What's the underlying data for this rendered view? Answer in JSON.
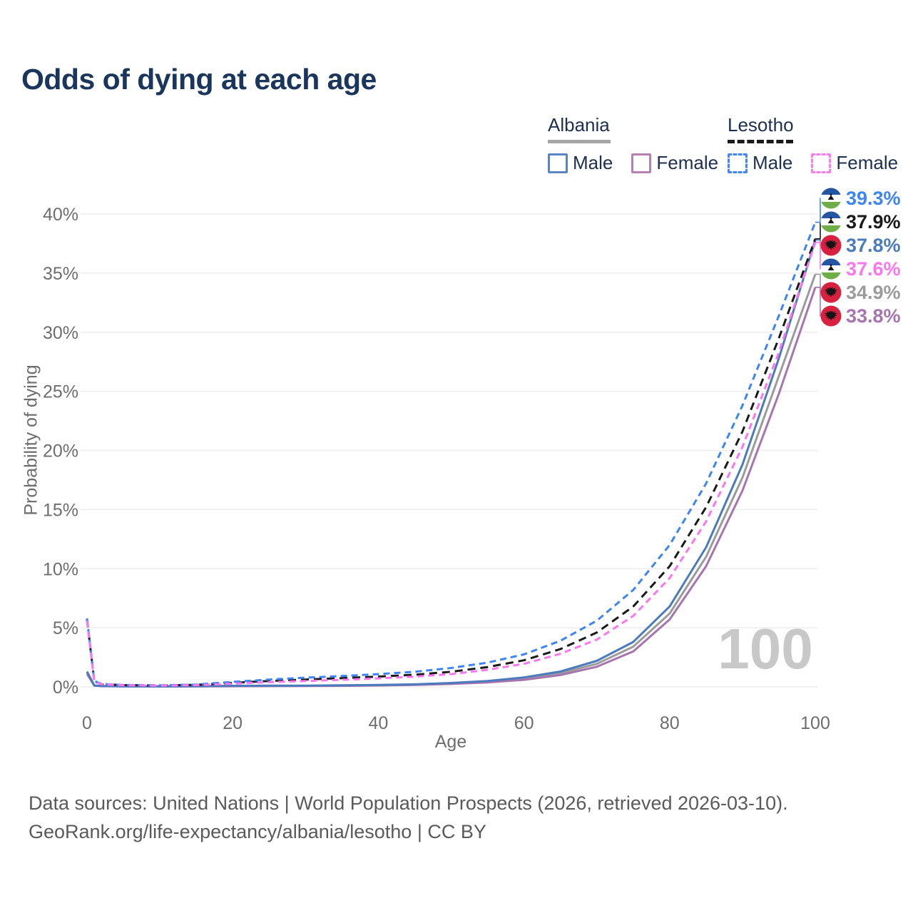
{
  "page": {
    "title": "Odds of dying at each age"
  },
  "legend": {
    "groups": [
      {
        "id": "albania",
        "label": "Albania",
        "line_style": "solid",
        "line_color": "#a6a6a6",
        "items": [
          {
            "id": "albania-male",
            "label": "Male",
            "color": "#5b84c4",
            "dashed": false
          },
          {
            "id": "albania-female",
            "label": "Female",
            "color": "#b77fb4",
            "dashed": false
          }
        ]
      },
      {
        "id": "lesotho",
        "label": "Lesotho",
        "line_style": "dashed",
        "line_color": "#1a1a1a",
        "items": [
          {
            "id": "lesotho-male",
            "label": "Male",
            "color": "#4285f4",
            "dashed": true
          },
          {
            "id": "lesotho-female",
            "label": "Female",
            "color": "#fb7ced",
            "dashed": true
          }
        ]
      }
    ]
  },
  "chart_data": {
    "type": "line",
    "title": "Odds of dying at each age",
    "xlabel": "Age",
    "ylabel": "Probability of dying",
    "xlim": [
      0,
      100
    ],
    "ylim": [
      0,
      41
    ],
    "xticks": [
      0,
      20,
      40,
      60,
      80,
      100
    ],
    "yticks_percent": [
      0,
      5,
      10,
      15,
      20,
      25,
      30,
      35,
      40
    ],
    "grid": "horizontal",
    "legend_position": "top-right",
    "watermark_age": "100",
    "series": [
      {
        "id": "albania-all",
        "name": "Albania (both sexes)",
        "flag": "albania",
        "color": "#9b9b9b",
        "dash": null,
        "end_value": "34.9%",
        "end_text_color": "#9b9b9b",
        "label_row": 4,
        "points": [
          [
            0,
            1.2
          ],
          [
            1,
            0.11
          ],
          [
            2,
            0.07
          ],
          [
            5,
            0.045
          ],
          [
            10,
            0.04
          ],
          [
            15,
            0.05
          ],
          [
            20,
            0.07
          ],
          [
            25,
            0.08
          ],
          [
            30,
            0.09
          ],
          [
            35,
            0.11
          ],
          [
            40,
            0.14
          ],
          [
            45,
            0.2
          ],
          [
            50,
            0.29
          ],
          [
            55,
            0.44
          ],
          [
            60,
            0.7
          ],
          [
            65,
            1.15
          ],
          [
            70,
            1.95
          ],
          [
            75,
            3.4
          ],
          [
            80,
            6.2
          ],
          [
            85,
            11.0
          ],
          [
            90,
            17.7
          ],
          [
            95,
            26.3
          ],
          [
            100,
            34.9
          ]
        ]
      },
      {
        "id": "albania-female",
        "name": "Albania Female",
        "flag": "albania",
        "color": "#a874b0",
        "dash": null,
        "end_value": "33.8%",
        "end_text_color": "#a874b0",
        "label_row": 5,
        "points": [
          [
            0,
            1.1
          ],
          [
            1,
            0.1
          ],
          [
            2,
            0.06
          ],
          [
            5,
            0.04
          ],
          [
            10,
            0.035
          ],
          [
            15,
            0.045
          ],
          [
            20,
            0.055
          ],
          [
            25,
            0.065
          ],
          [
            30,
            0.075
          ],
          [
            35,
            0.09
          ],
          [
            40,
            0.12
          ],
          [
            45,
            0.17
          ],
          [
            50,
            0.25
          ],
          [
            55,
            0.38
          ],
          [
            60,
            0.6
          ],
          [
            65,
            1.0
          ],
          [
            70,
            1.7
          ],
          [
            75,
            3.0
          ],
          [
            80,
            5.7
          ],
          [
            85,
            10.2
          ],
          [
            90,
            16.6
          ],
          [
            95,
            24.8
          ],
          [
            100,
            33.8
          ]
        ]
      },
      {
        "id": "albania-male",
        "name": "Albania Male",
        "flag": "albania",
        "color": "#4a7cbd",
        "dash": null,
        "end_value": "37.8%",
        "end_text_color": "#4a7cbd",
        "label_row": 2,
        "points": [
          [
            0,
            1.3
          ],
          [
            1,
            0.12
          ],
          [
            2,
            0.08
          ],
          [
            5,
            0.05
          ],
          [
            10,
            0.045
          ],
          [
            15,
            0.06
          ],
          [
            20,
            0.09
          ],
          [
            25,
            0.1
          ],
          [
            30,
            0.11
          ],
          [
            35,
            0.13
          ],
          [
            40,
            0.16
          ],
          [
            45,
            0.22
          ],
          [
            50,
            0.33
          ],
          [
            55,
            0.5
          ],
          [
            60,
            0.8
          ],
          [
            65,
            1.3
          ],
          [
            70,
            2.2
          ],
          [
            75,
            3.8
          ],
          [
            80,
            6.8
          ],
          [
            85,
            11.8
          ],
          [
            90,
            18.8
          ],
          [
            95,
            27.8
          ],
          [
            100,
            37.8
          ]
        ]
      },
      {
        "id": "lesotho-all",
        "name": "Lesotho (both sexes)",
        "flag": "lesotho",
        "color": "#1a1a1a",
        "dash": "11 7",
        "end_value": "37.9%",
        "end_text_color": "#1a1a1a",
        "label_row": 1,
        "points": [
          [
            0,
            5.7
          ],
          [
            1,
            0.48
          ],
          [
            2,
            0.23
          ],
          [
            5,
            0.15
          ],
          [
            10,
            0.12
          ],
          [
            15,
            0.17
          ],
          [
            20,
            0.34
          ],
          [
            25,
            0.5
          ],
          [
            30,
            0.62
          ],
          [
            35,
            0.74
          ],
          [
            40,
            0.87
          ],
          [
            45,
            1.03
          ],
          [
            50,
            1.28
          ],
          [
            55,
            1.68
          ],
          [
            60,
            2.25
          ],
          [
            65,
            3.2
          ],
          [
            70,
            4.6
          ],
          [
            75,
            6.8
          ],
          [
            80,
            10.2
          ],
          [
            85,
            15.2
          ],
          [
            90,
            21.6
          ],
          [
            95,
            29.5
          ],
          [
            100,
            37.9
          ]
        ]
      },
      {
        "id": "lesotho-male",
        "name": "Lesotho Male",
        "flag": "lesotho",
        "color": "#3d85f0",
        "dash": "9 6",
        "end_value": "39.3%",
        "end_text_color": "#3d85f0",
        "label_row": 0,
        "points": [
          [
            0,
            5.8
          ],
          [
            1,
            0.5
          ],
          [
            2,
            0.25
          ],
          [
            5,
            0.16
          ],
          [
            10,
            0.13
          ],
          [
            15,
            0.2
          ],
          [
            20,
            0.42
          ],
          [
            25,
            0.62
          ],
          [
            30,
            0.78
          ],
          [
            35,
            0.92
          ],
          [
            40,
            1.08
          ],
          [
            45,
            1.28
          ],
          [
            50,
            1.6
          ],
          [
            55,
            2.05
          ],
          [
            60,
            2.75
          ],
          [
            65,
            3.9
          ],
          [
            70,
            5.6
          ],
          [
            75,
            8.2
          ],
          [
            80,
            12.0
          ],
          [
            85,
            17.2
          ],
          [
            90,
            23.8
          ],
          [
            95,
            31.4
          ],
          [
            100,
            39.3
          ]
        ]
      },
      {
        "id": "lesotho-female",
        "name": "Lesotho Female",
        "flag": "lesotho",
        "color": "#fb76ee",
        "dash": "9 6",
        "end_value": "37.6%",
        "end_text_color": "#fb76ee",
        "label_row": 3,
        "points": [
          [
            0,
            5.6
          ],
          [
            1,
            0.46
          ],
          [
            2,
            0.22
          ],
          [
            5,
            0.14
          ],
          [
            10,
            0.11
          ],
          [
            15,
            0.15
          ],
          [
            20,
            0.28
          ],
          [
            25,
            0.4
          ],
          [
            30,
            0.5
          ],
          [
            35,
            0.6
          ],
          [
            40,
            0.72
          ],
          [
            45,
            0.87
          ],
          [
            50,
            1.08
          ],
          [
            55,
            1.45
          ],
          [
            60,
            1.95
          ],
          [
            65,
            2.8
          ],
          [
            70,
            4.0
          ],
          [
            75,
            6.0
          ],
          [
            80,
            9.2
          ],
          [
            85,
            14.0
          ],
          [
            90,
            20.3
          ],
          [
            95,
            28.3
          ],
          [
            100,
            37.6
          ]
        ]
      }
    ],
    "flag_colors": {
      "albania_red": "#d8213f",
      "lesotho_blue": "#2456a4",
      "lesotho_green": "#6fae46",
      "emblem_black": "#151515"
    }
  },
  "footer": {
    "line1": "Data sources: United Nations | World Population Prospects (2026, retrieved 2026-03-10).",
    "line2": "GeoRank.org/life-expectancy/albania/lesotho | CC BY"
  }
}
